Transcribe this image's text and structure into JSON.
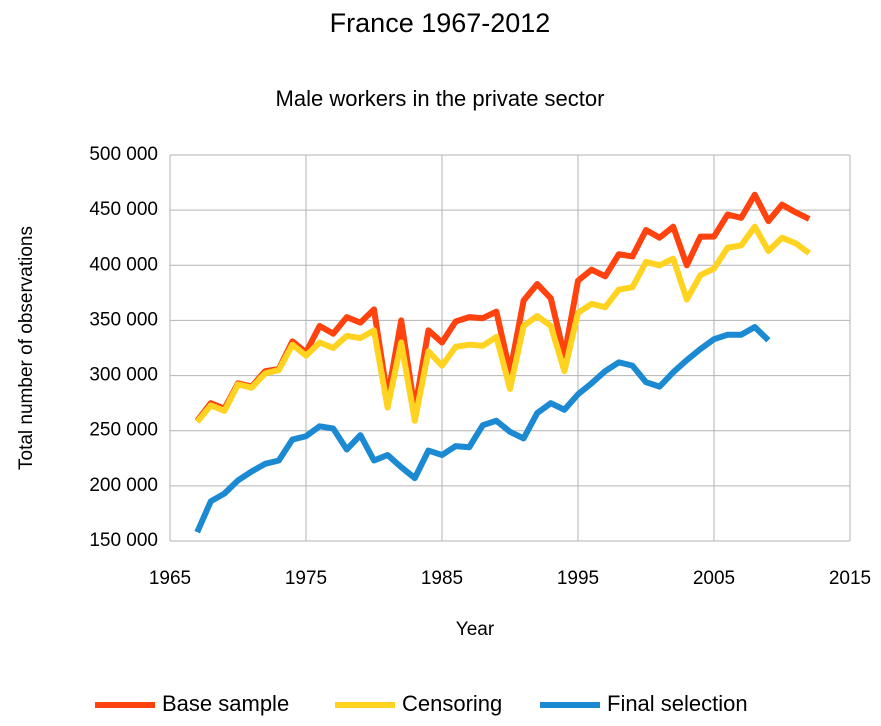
{
  "chart_data": {
    "type": "line",
    "title": "France 1967-2012",
    "subtitle": "Male workers in the private sector",
    "x_label": "Year",
    "y_label": "Total number of observations",
    "x": [
      1967,
      1968,
      1969,
      1970,
      1971,
      1972,
      1973,
      1974,
      1975,
      1976,
      1977,
      1978,
      1979,
      1980,
      1981,
      1982,
      1983,
      1984,
      1985,
      1986,
      1987,
      1988,
      1989,
      1990,
      1991,
      1992,
      1993,
      1994,
      1995,
      1996,
      1997,
      1998,
      1999,
      2000,
      2001,
      2002,
      2003,
      2004,
      2005,
      2006,
      2007,
      2008,
      2009,
      2010,
      2011,
      2012
    ],
    "series": [
      {
        "name": "Base sample",
        "color": "#ff420e",
        "values": [
          259000,
          275000,
          270000,
          293000,
          290000,
          304000,
          306000,
          331000,
          321000,
          345000,
          338000,
          353000,
          348000,
          360000,
          280000,
          350000,
          269000,
          341000,
          330000,
          349000,
          353000,
          352000,
          358000,
          303000,
          368000,
          383000,
          370000,
          318000,
          386000,
          396000,
          390000,
          410000,
          408000,
          432000,
          425000,
          435000,
          400000,
          426000,
          426000,
          446000,
          443000,
          464000,
          440000,
          455000,
          448000,
          442000
        ]
      },
      {
        "name": "Censoring",
        "color": "#ffd320",
        "values": [
          258000,
          273000,
          268000,
          292000,
          289000,
          302000,
          305000,
          328000,
          318000,
          330000,
          325000,
          336000,
          334000,
          341000,
          271000,
          330000,
          259000,
          322000,
          309000,
          326000,
          328000,
          327000,
          335000,
          288000,
          345000,
          354000,
          345000,
          304000,
          357000,
          365000,
          362000,
          378000,
          380000,
          403000,
          400000,
          406000,
          369000,
          391000,
          397000,
          416000,
          418000,
          435000,
          413000,
          425000,
          420000,
          411000
        ]
      },
      {
        "name": "Final selection",
        "color": "#1c8ad2",
        "values": [
          158000,
          186000,
          193000,
          205000,
          213000,
          220000,
          223000,
          242000,
          245000,
          254000,
          252000,
          233000,
          246000,
          223000,
          228000,
          217000,
          207000,
          232000,
          228000,
          236000,
          235000,
          255000,
          259000,
          249000,
          243000,
          266000,
          275000,
          269000,
          283000,
          293000,
          304000,
          312000,
          309000,
          294000,
          290000,
          303000,
          314000,
          324000,
          333000,
          337000,
          337000,
          344000,
          332000,
          null,
          null,
          null
        ]
      }
    ],
    "xlim": [
      1965,
      2015
    ],
    "xticks": [
      1965,
      1975,
      1985,
      1995,
      2005,
      2015
    ],
    "ylim": [
      150000,
      500000
    ],
    "yticks": [
      {
        "value": 150000,
        "label": "150 000"
      },
      {
        "value": 200000,
        "label": "200 000"
      },
      {
        "value": 250000,
        "label": "250 000"
      },
      {
        "value": 300000,
        "label": "300 000"
      },
      {
        "value": 350000,
        "label": "350 000"
      },
      {
        "value": 400000,
        "label": "400 000"
      },
      {
        "value": 450000,
        "label": "450 000"
      },
      {
        "value": 500000,
        "label": "500 000"
      }
    ],
    "grid": true,
    "legend": "bottom"
  }
}
